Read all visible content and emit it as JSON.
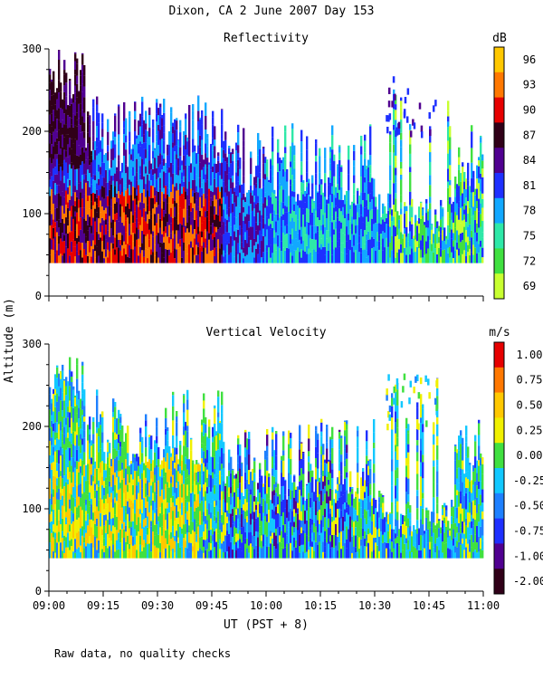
{
  "title": "Dixon, CA  2 June 2007  Day 153",
  "footnote": "Raw data, no quality checks",
  "shared_ylabel": "Altitude (m)",
  "chart_data": [
    {
      "type": "heatmap",
      "title": "Reflectivity",
      "colorbar_unit": "dB",
      "colorbar_ticks": [
        "96",
        "93",
        "90",
        "87",
        "84",
        "81",
        "78",
        "75",
        "72",
        "69"
      ],
      "colorbar_colors": [
        "#ffc800",
        "#ff7800",
        "#e60000",
        "#300018",
        "#500090",
        "#1e30ff",
        "#12a8ff",
        "#2ee8a8",
        "#40e040",
        "#c8ff30"
      ],
      "xlabel": "UT  (PST + 8)",
      "ylabel": "Altitude (m)",
      "x_ticks": [
        "09:00",
        "09:15",
        "09:30",
        "09:45",
        "10:00",
        "10:15",
        "10:30",
        "10:45",
        "11:00"
      ],
      "y_ticks": [
        "0",
        "100",
        "200",
        "300"
      ],
      "xlim": [
        "09:00",
        "11:00"
      ],
      "ylim": [
        0,
        300
      ],
      "data_floor_m": 40
    },
    {
      "type": "heatmap",
      "title": "Vertical Velocity",
      "colorbar_unit": "m/s",
      "colorbar_ticks": [
        "1.00",
        "0.75",
        "0.50",
        "0.25",
        "0.00",
        "-0.25",
        "-0.50",
        "-0.75",
        "-1.00",
        "-2.00"
      ],
      "colorbar_colors": [
        "#e60000",
        "#ff7800",
        "#ffc800",
        "#f0f000",
        "#40e040",
        "#12c8ff",
        "#1e80ff",
        "#1e30ff",
        "#500090",
        "#300018"
      ],
      "xlabel": "UT  (PST + 8)",
      "ylabel": "Altitude (m)",
      "x_ticks": [
        "09:00",
        "09:15",
        "09:30",
        "09:45",
        "10:00",
        "10:15",
        "10:30",
        "10:45",
        "11:00"
      ],
      "y_ticks": [
        "0",
        "100",
        "200",
        "300"
      ],
      "xlim": [
        "09:00",
        "11:00"
      ],
      "ylim": [
        0,
        300
      ],
      "data_floor_m": 40
    }
  ]
}
